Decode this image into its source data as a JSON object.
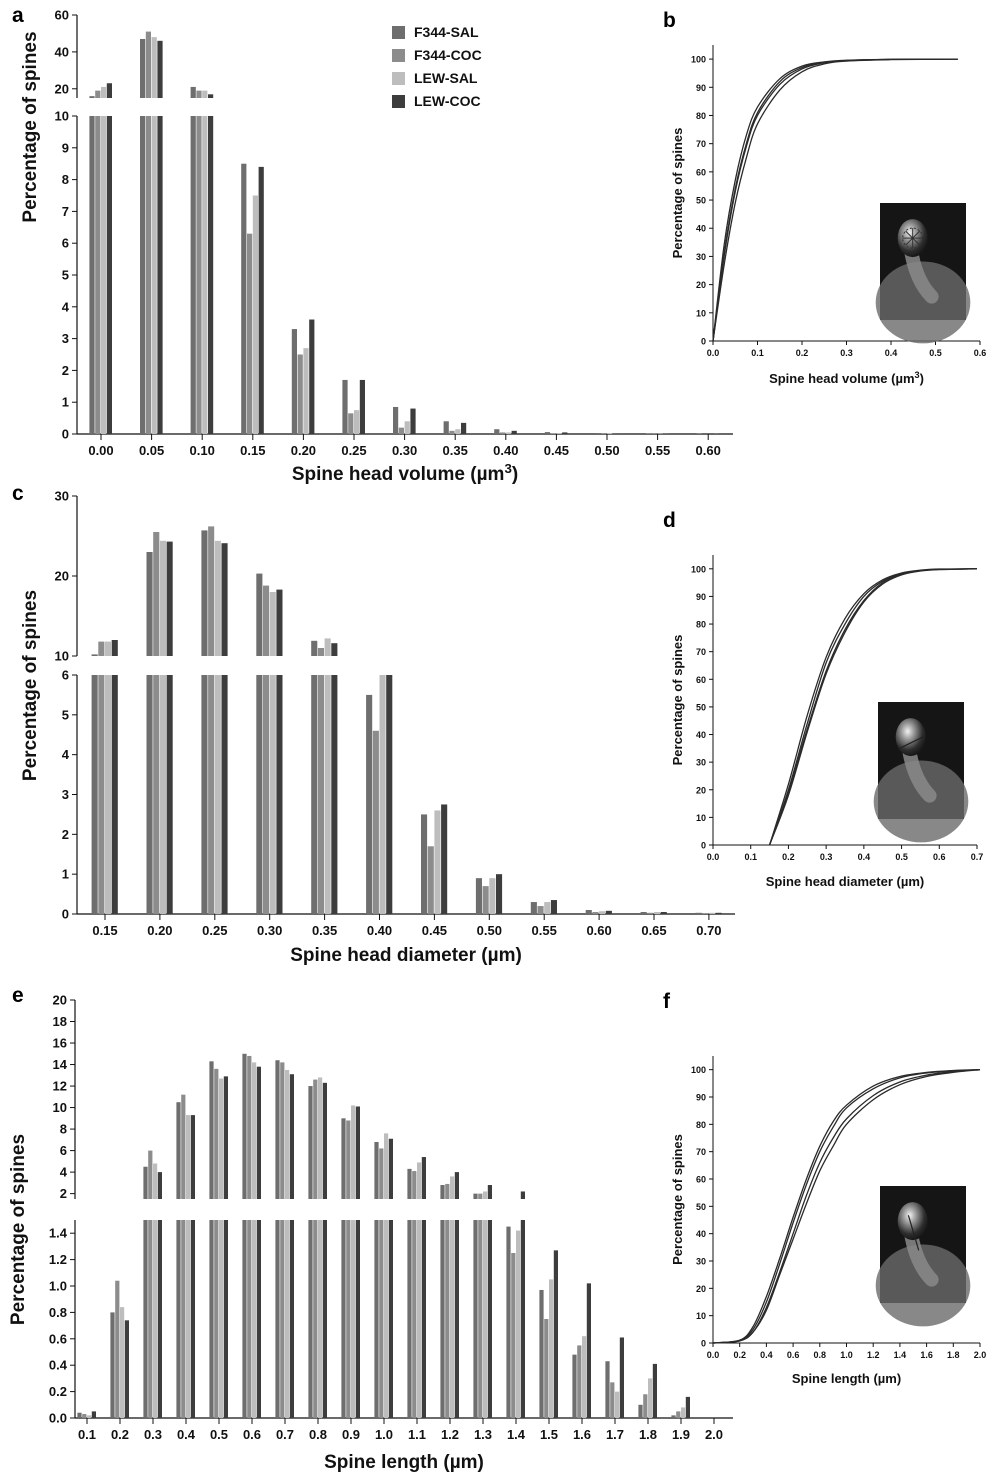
{
  "colors": {
    "F344-SAL": "#6e6e6e",
    "F344-COC": "#8c8c8c",
    "LEW-SAL": "#bdbdbd",
    "LEW-COC": "#3d3d3d",
    "cdf_line": "#2a2a2a"
  },
  "chart_data": [
    {
      "id": "a",
      "panel_label": "a",
      "type": "bar",
      "xlabel": "Spine head volume (µm³)",
      "ylabel": "Percentage of spines",
      "broken_y_axis": true,
      "ylim_lower": [
        0,
        10
      ],
      "ylim_upper": [
        15,
        60
      ],
      "yticks_lower": [
        "0",
        "1",
        "2",
        "3",
        "4",
        "5",
        "6",
        "7",
        "8",
        "9",
        "10"
      ],
      "yticks_upper": [
        "20",
        "40",
        "60"
      ],
      "xtick_labels": [
        "0.00",
        "0.05",
        "0.10",
        "0.15",
        "0.20",
        "0.25",
        "0.30",
        "0.35",
        "0.40",
        "0.45",
        "0.50",
        "0.55",
        "0.60"
      ],
      "legend": {
        "position": "top-center",
        "entries": [
          "F344-SAL",
          "F344-COC",
          "LEW-SAL",
          "LEW-COC"
        ]
      },
      "series": [
        {
          "name": "F344-SAL",
          "values": [
            16,
            47,
            21,
            8.5,
            3.3,
            1.7,
            0.85,
            0.4,
            0.15,
            0.06,
            0.03,
            0.02,
            0.01
          ]
        },
        {
          "name": "F344-COC",
          "values": [
            19,
            51,
            19,
            6.3,
            2.5,
            0.65,
            0.2,
            0.1,
            0.05,
            0.02,
            0.01,
            0.01,
            0.0
          ]
        },
        {
          "name": "LEW-SAL",
          "values": [
            21,
            48,
            19,
            7.5,
            2.7,
            0.75,
            0.4,
            0.15,
            0.05,
            0.03,
            0.02,
            0.01,
            0.0
          ]
        },
        {
          "name": "LEW-COC",
          "values": [
            23,
            46,
            17,
            8.4,
            3.6,
            1.7,
            0.8,
            0.35,
            0.1,
            0.05,
            0.02,
            0.01,
            0.01
          ]
        }
      ]
    },
    {
      "id": "b",
      "panel_label": "b",
      "type": "line",
      "xlabel": "Spine head volume (µm³)",
      "ylabel": "Percentage of spines",
      "xlim": [
        0,
        0.6
      ],
      "ylim": [
        0,
        105
      ],
      "xtick_labels": [
        "0.0",
        "0.1",
        "0.2",
        "0.3",
        "0.4",
        "0.5",
        "0.6"
      ],
      "ytick_labels": [
        "0",
        "10",
        "20",
        "30",
        "40",
        "50",
        "60",
        "70",
        "80",
        "90",
        "100"
      ],
      "x": [
        0,
        0.025,
        0.05,
        0.075,
        0.1,
        0.15,
        0.2,
        0.25,
        0.3,
        0.4,
        0.55
      ],
      "series": [
        {
          "values": [
            0,
            34,
            57,
            73,
            83,
            93,
            97.5,
            99,
            99.6,
            99.9,
            100
          ]
        },
        {
          "values": [
            0,
            30,
            53,
            69,
            80,
            91,
            96.5,
            98.7,
            99.5,
            99.9,
            100
          ]
        },
        {
          "values": [
            0,
            31,
            54,
            70,
            81,
            92,
            97,
            98.8,
            99.5,
            99.9,
            100
          ]
        },
        {
          "values": [
            0,
            27,
            49,
            65,
            77,
            89,
            95.5,
            98.3,
            99.3,
            99.8,
            100
          ]
        }
      ]
    },
    {
      "id": "c",
      "panel_label": "c",
      "type": "bar",
      "xlabel": "Spine head diameter (µm)",
      "ylabel": "Percentage of spines",
      "broken_y_axis": true,
      "ylim_lower": [
        0,
        6
      ],
      "ylim_upper": [
        10,
        30
      ],
      "yticks_lower": [
        "0",
        "1",
        "2",
        "3",
        "4",
        "5",
        "6"
      ],
      "yticks_upper": [
        "10",
        "20",
        "30"
      ],
      "xtick_labels": [
        "0.15",
        "0.20",
        "0.25",
        "0.30",
        "0.35",
        "0.40",
        "0.45",
        "0.50",
        "0.55",
        "0.60",
        "0.65",
        "0.70"
      ],
      "series": [
        {
          "name": "F344-SAL",
          "values": [
            10.2,
            23,
            25.7,
            20.3,
            11.9,
            5.5,
            2.5,
            0.9,
            0.3,
            0.1,
            0.05,
            0.03
          ]
        },
        {
          "name": "F344-COC",
          "values": [
            11.8,
            25.5,
            26.2,
            18.8,
            11.0,
            4.6,
            1.7,
            0.7,
            0.2,
            0.05,
            0.03,
            0.02
          ]
        },
        {
          "name": "LEW-SAL",
          "values": [
            11.8,
            24.4,
            24.4,
            18.0,
            12.2,
            6.0,
            2.6,
            0.9,
            0.3,
            0.07,
            0.05,
            0.03
          ]
        },
        {
          "name": "LEW-COC",
          "values": [
            12.0,
            24.3,
            24.1,
            18.3,
            11.6,
            6.0,
            2.75,
            1.0,
            0.35,
            0.08,
            0.05,
            0.03
          ]
        }
      ]
    },
    {
      "id": "d",
      "panel_label": "d",
      "type": "line",
      "xlabel": "Spine head diameter (µm)",
      "ylabel": "Percentage of spines",
      "xlim": [
        0,
        0.7
      ],
      "ylim": [
        0,
        105
      ],
      "xtick_labels": [
        "0.0",
        "0.1",
        "0.2",
        "0.3",
        "0.4",
        "0.5",
        "0.6",
        "0.7"
      ],
      "ytick_labels": [
        "0",
        "10",
        "20",
        "30",
        "40",
        "50",
        "60",
        "70",
        "80",
        "90",
        "100"
      ],
      "x": [
        0.15,
        0.2,
        0.25,
        0.3,
        0.35,
        0.4,
        0.45,
        0.5,
        0.55,
        0.6,
        0.7
      ],
      "series": [
        {
          "values": [
            0,
            22,
            47,
            68,
            82,
            91,
            96,
            98.5,
            99.5,
            99.9,
            100
          ]
        },
        {
          "values": [
            0,
            20,
            44,
            66,
            80,
            90,
            95.5,
            98.2,
            99.4,
            99.8,
            100
          ]
        },
        {
          "values": [
            0,
            19,
            42,
            63,
            78,
            88.5,
            95,
            98,
            99.3,
            99.8,
            100
          ]
        },
        {
          "values": [
            0,
            18,
            41,
            62,
            77,
            88,
            94.5,
            97.8,
            99.2,
            99.7,
            100
          ]
        }
      ]
    },
    {
      "id": "e",
      "panel_label": "e",
      "type": "bar",
      "xlabel": "Spine length (µm)",
      "ylabel": "Percentage of spines",
      "broken_y_axis": true,
      "ylim_lower": [
        0,
        1.5
      ],
      "ylim_upper": [
        1.5,
        20
      ],
      "yticks_lower": [
        "0.0",
        "0.2",
        "0.4",
        "0.6",
        "0.8",
        "1.0",
        "1.2",
        "1.4"
      ],
      "yticks_upper": [
        "2",
        "4",
        "6",
        "8",
        "10",
        "12",
        "14",
        "16",
        "18",
        "20"
      ],
      "xtick_labels": [
        "0.1",
        "0.2",
        "0.3",
        "0.4",
        "0.5",
        "0.6",
        "0.7",
        "0.8",
        "0.9",
        "1.0",
        "1.1",
        "1.2",
        "1.3",
        "1.4",
        "1.5",
        "1.6",
        "1.7",
        "1.8",
        "1.9",
        "2.0"
      ],
      "series": [
        {
          "name": "F344-SAL",
          "values": [
            0.04,
            0.8,
            4.5,
            10.5,
            14.3,
            15.0,
            14.4,
            12.0,
            9.0,
            6.8,
            4.3,
            2.8,
            2.0,
            1.45,
            0.97,
            0.48,
            0.43,
            0.1,
            0.02,
            0.0
          ]
        },
        {
          "name": "F344-COC",
          "values": [
            0.03,
            1.04,
            6.0,
            11.2,
            13.6,
            14.8,
            14.2,
            12.6,
            8.8,
            6.2,
            4.1,
            2.9,
            2.0,
            1.25,
            0.75,
            0.55,
            0.27,
            0.18,
            0.05,
            0.0
          ]
        },
        {
          "name": "LEW-SAL",
          "values": [
            0.02,
            0.84,
            4.8,
            9.3,
            12.7,
            14.2,
            13.5,
            12.8,
            10.2,
            7.6,
            4.9,
            3.6,
            2.2,
            1.42,
            1.05,
            0.62,
            0.2,
            0.3,
            0.08,
            0.0
          ]
        },
        {
          "name": "LEW-COC",
          "values": [
            0.05,
            0.74,
            4.0,
            9.3,
            12.9,
            13.8,
            13.1,
            12.3,
            10.1,
            7.1,
            5.4,
            4.0,
            2.8,
            2.2,
            1.27,
            1.02,
            0.61,
            0.41,
            0.16,
            0.0
          ]
        }
      ]
    },
    {
      "id": "f",
      "panel_label": "f",
      "type": "line",
      "xlabel": "Spine length (µm)",
      "ylabel": "Percentage of spines",
      "xlim": [
        0,
        2.0
      ],
      "ylim": [
        0,
        105
      ],
      "xtick_labels": [
        "0.0",
        "0.2",
        "0.4",
        "0.6",
        "0.8",
        "1.0",
        "1.2",
        "1.4",
        "1.6",
        "1.8",
        "2.0"
      ],
      "ytick_labels": [
        "0",
        "10",
        "20",
        "30",
        "40",
        "50",
        "60",
        "70",
        "80",
        "90",
        "100"
      ],
      "x": [
        0,
        0.2,
        0.3,
        0.4,
        0.5,
        0.6,
        0.7,
        0.8,
        0.9,
        1.0,
        1.2,
        1.4,
        1.6,
        1.8,
        2.0
      ],
      "series": [
        {
          "values": [
            0,
            1,
            6,
            17,
            31,
            46,
            60,
            72,
            81,
            87,
            94,
            97.5,
            99,
            99.7,
            100
          ]
        },
        {
          "values": [
            0,
            1,
            5,
            15,
            29,
            44,
            58,
            70,
            79,
            86,
            93,
            97,
            98.8,
            99.6,
            100
          ]
        },
        {
          "values": [
            0,
            0.8,
            4,
            13,
            26,
            40,
            54,
            66,
            75,
            82,
            90.5,
            95.5,
            98,
            99.3,
            100
          ]
        },
        {
          "values": [
            0,
            0.8,
            4,
            12,
            25,
            38,
            51,
            63,
            72,
            80,
            89,
            94.5,
            97.5,
            99,
            100
          ]
        }
      ]
    }
  ]
}
